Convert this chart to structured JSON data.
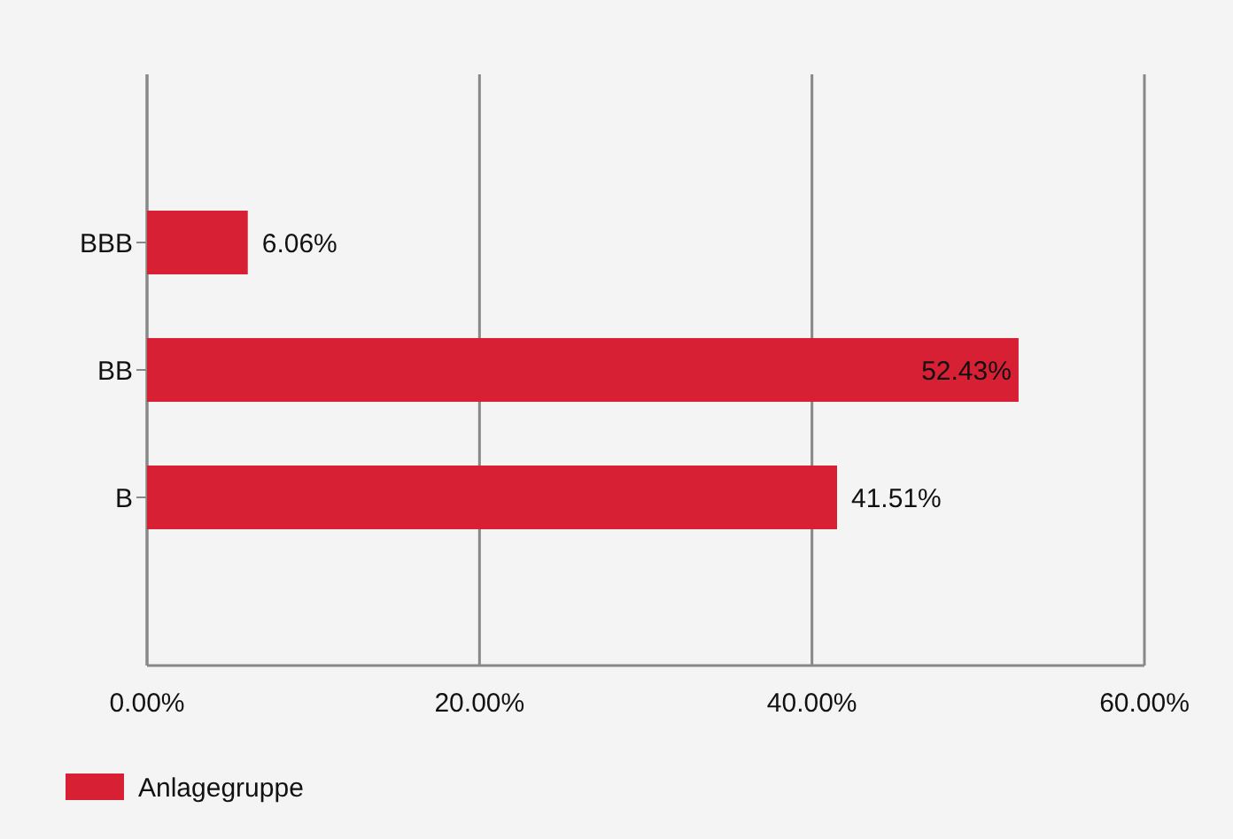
{
  "chart_data": {
    "type": "bar",
    "orientation": "horizontal",
    "categories": [
      "BBB",
      "BB",
      "B"
    ],
    "series": [
      {
        "name": "Anlagegruppe",
        "color": "#d82034",
        "values": [
          6.06,
          52.43,
          41.51
        ],
        "value_labels": [
          "6.06%",
          "52.43%",
          "41.51%"
        ]
      }
    ],
    "xlim": [
      0,
      60
    ],
    "xticks": [
      {
        "value": 0,
        "label": "0.00%"
      },
      {
        "value": 20,
        "label": "20.00%"
      },
      {
        "value": 40,
        "label": "40.00%"
      },
      {
        "value": 60,
        "label": "60.00%"
      }
    ],
    "grid": "x",
    "legend": "bottom left"
  }
}
